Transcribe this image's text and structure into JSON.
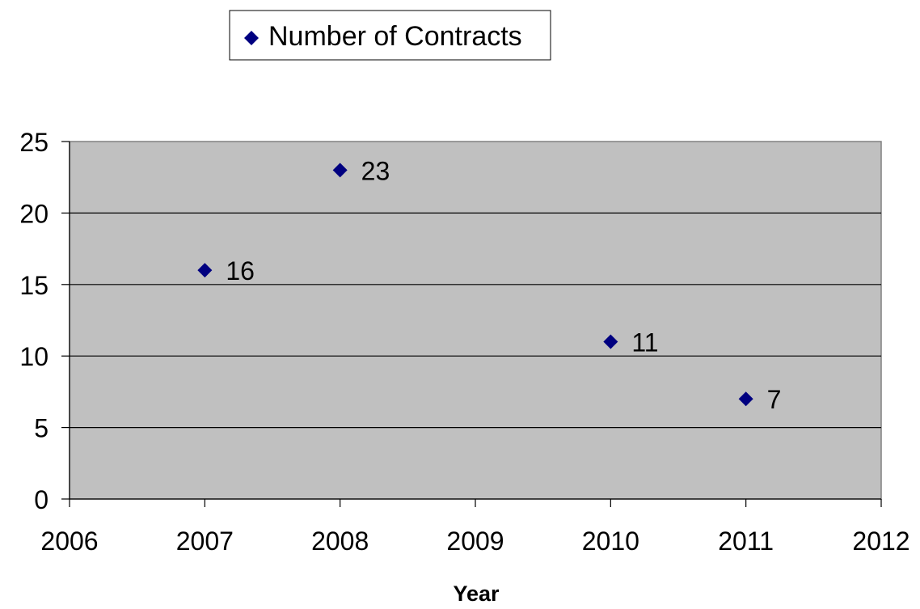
{
  "chart_data": {
    "type": "scatter",
    "title": "",
    "xlabel": "Year",
    "ylabel": "",
    "xlim": [
      2006,
      2012
    ],
    "ylim": [
      0,
      25
    ],
    "x_ticks": [
      2006,
      2007,
      2008,
      2009,
      2010,
      2011,
      2012
    ],
    "y_ticks": [
      0,
      5,
      10,
      15,
      20,
      25
    ],
    "grid": "horizontal",
    "legend_position": "top",
    "plot_background": "#c0c0c0",
    "series": [
      {
        "name": "Number of Contracts",
        "color": "#000080",
        "marker": "diamond",
        "points": [
          {
            "x": 2007,
            "y": 16,
            "label": "16"
          },
          {
            "x": 2008,
            "y": 23,
            "label": "23"
          },
          {
            "x": 2010,
            "y": 11,
            "label": "11"
          },
          {
            "x": 2011,
            "y": 7,
            "label": "7"
          }
        ]
      }
    ]
  }
}
